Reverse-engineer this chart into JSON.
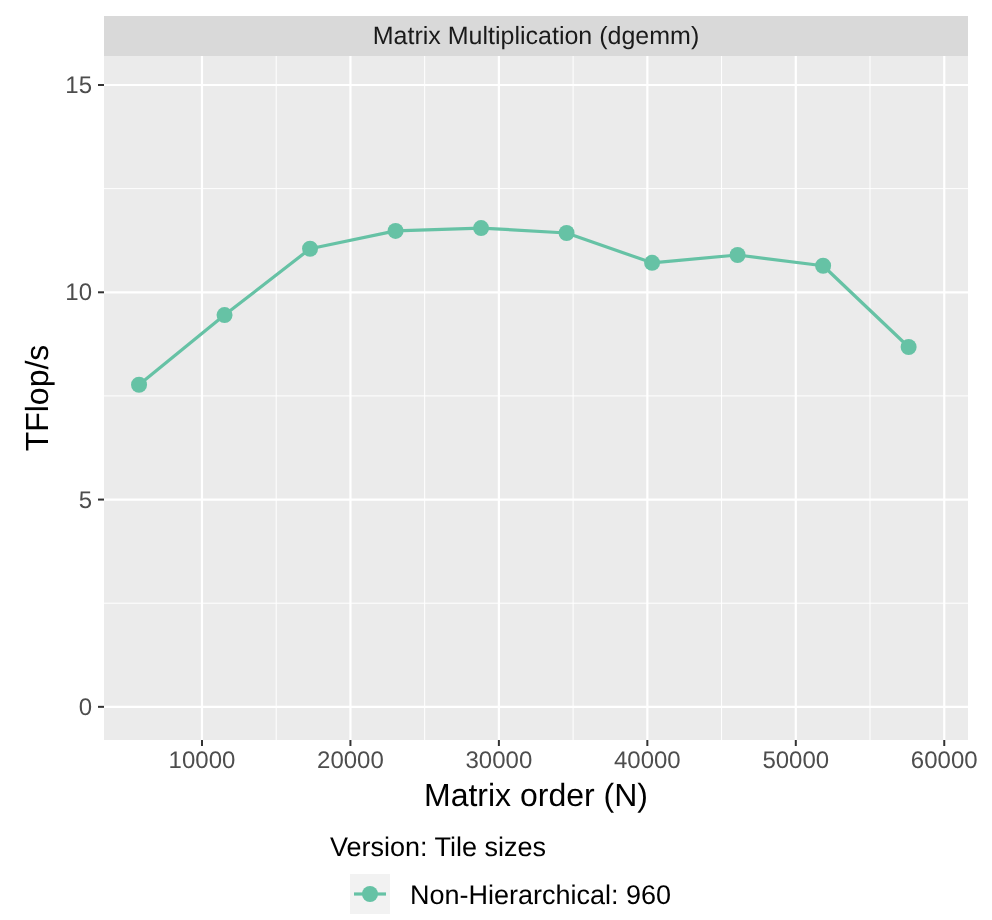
{
  "chart_data": {
    "type": "line",
    "title": "Matrix Multiplication (dgemm)",
    "xlabel": "Matrix order (N)",
    "ylabel": "TFlop/s",
    "legend_title": "Version: Tile sizes",
    "x": [
      5760,
      11520,
      17280,
      23040,
      28800,
      34560,
      40320,
      46080,
      51840,
      57600
    ],
    "series": [
      {
        "name": "Non-Hierarchical: 960",
        "color": "#66c2a5",
        "values": [
          7.77,
          9.45,
          11.05,
          11.48,
          11.55,
          11.43,
          10.71,
          10.9,
          10.64,
          8.68
        ]
      }
    ],
    "xlim": [
      3400,
      61600
    ],
    "xticks": [
      10000,
      20000,
      30000,
      40000,
      50000,
      60000
    ],
    "ylim": [
      -0.8,
      15.7
    ],
    "yticks": [
      0,
      5,
      10,
      15
    ],
    "grid": true,
    "legend": "bottom",
    "marker": "circle",
    "line_style": "solid"
  }
}
